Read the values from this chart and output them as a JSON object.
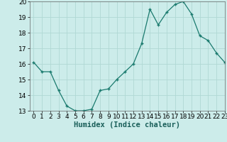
{
  "x": [
    0,
    1,
    2,
    3,
    4,
    5,
    6,
    7,
    8,
    9,
    10,
    11,
    12,
    13,
    14,
    15,
    16,
    17,
    18,
    19,
    20,
    21,
    22,
    23
  ],
  "y": [
    16.1,
    15.5,
    15.5,
    14.3,
    13.3,
    13.0,
    13.0,
    13.1,
    14.3,
    14.4,
    15.0,
    15.5,
    16.0,
    17.3,
    19.5,
    18.5,
    19.3,
    19.8,
    20.0,
    19.2,
    17.8,
    17.5,
    16.7,
    16.1
  ],
  "line_color": "#1a7a6e",
  "marker": "+",
  "marker_size": 3,
  "bg_color": "#ccecea",
  "grid_color": "#b0d8d4",
  "xlabel": "Humidex (Indice chaleur)",
  "ylim": [
    13,
    20
  ],
  "xlim": [
    -0.5,
    23
  ],
  "yticks": [
    13,
    14,
    15,
    16,
    17,
    18,
    19,
    20
  ],
  "xticks": [
    0,
    1,
    2,
    3,
    4,
    5,
    6,
    7,
    8,
    9,
    10,
    11,
    12,
    13,
    14,
    15,
    16,
    17,
    18,
    19,
    20,
    21,
    22,
    23
  ],
  "xlabel_fontsize": 7.5,
  "tick_fontsize": 6.5
}
